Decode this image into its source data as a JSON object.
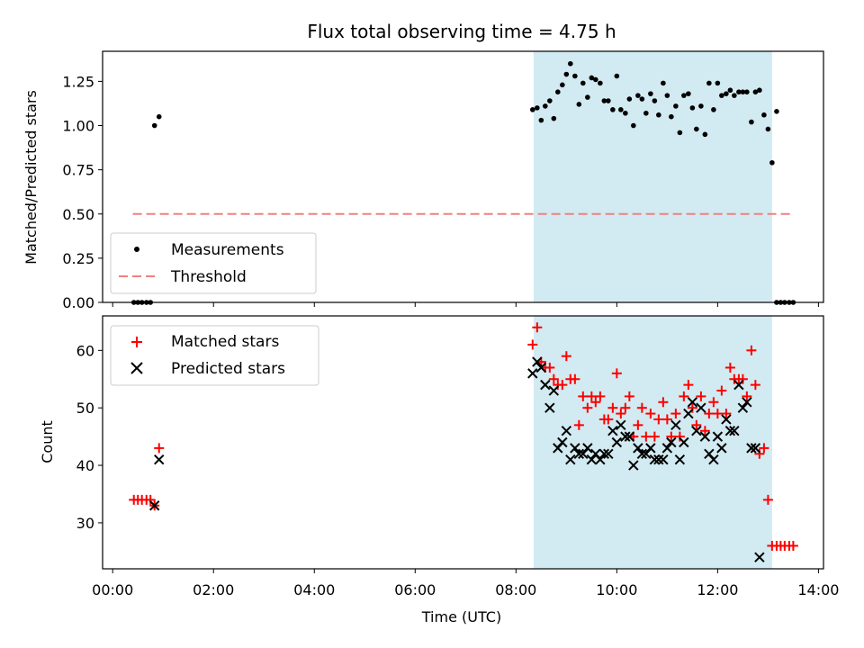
{
  "title": "Flux total observing time = 4.75 h",
  "colors": {
    "points": "#000000",
    "threshold": "#f08080",
    "matched": "#ff0000",
    "predicted": "#000000",
    "shade": "#add8e6"
  },
  "chart_data": [
    {
      "type": "scatter",
      "ylabel": "Matched/Predicted stars",
      "ylim": [
        0,
        1.42
      ],
      "yticks": [
        0.0,
        0.25,
        0.5,
        0.75,
        1.0,
        1.25
      ],
      "ytick_labels": [
        "0.00",
        "0.25",
        "0.50",
        "0.75",
        "1.00",
        "1.25"
      ],
      "xlim_hours": [
        -0.2,
        14.1
      ],
      "shaded_span_hours": [
        8.35,
        13.08
      ],
      "threshold": {
        "value": 0.5,
        "x_range_hours": [
          0.4,
          13.5
        ]
      },
      "legend": {
        "position": "lower-left",
        "entries": [
          "Measurements",
          "Threshold"
        ]
      },
      "series": [
        {
          "name": "Measurements",
          "points": [
            [
              0.42,
              0
            ],
            [
              0.5,
              0
            ],
            [
              0.58,
              0
            ],
            [
              0.67,
              0
            ],
            [
              0.75,
              0
            ],
            [
              0.83,
              1.0
            ],
            [
              0.92,
              1.05
            ],
            [
              8.33,
              1.09
            ],
            [
              8.42,
              1.1
            ],
            [
              8.5,
              1.03
            ],
            [
              8.58,
              1.11
            ],
            [
              8.67,
              1.14
            ],
            [
              8.75,
              1.04
            ],
            [
              8.83,
              1.19
            ],
            [
              8.92,
              1.23
            ],
            [
              9.0,
              1.29
            ],
            [
              9.08,
              1.35
            ],
            [
              9.17,
              1.28
            ],
            [
              9.25,
              1.12
            ],
            [
              9.33,
              1.24
            ],
            [
              9.42,
              1.16
            ],
            [
              9.5,
              1.27
            ],
            [
              9.58,
              1.26
            ],
            [
              9.67,
              1.24
            ],
            [
              9.75,
              1.14
            ],
            [
              9.83,
              1.14
            ],
            [
              9.92,
              1.09
            ],
            [
              10.0,
              1.28
            ],
            [
              10.08,
              1.09
            ],
            [
              10.17,
              1.07
            ],
            [
              10.25,
              1.15
            ],
            [
              10.33,
              1.0
            ],
            [
              10.42,
              1.17
            ],
            [
              10.5,
              1.15
            ],
            [
              10.58,
              1.07
            ],
            [
              10.67,
              1.18
            ],
            [
              10.75,
              1.14
            ],
            [
              10.83,
              1.06
            ],
            [
              10.92,
              1.24
            ],
            [
              11.0,
              1.17
            ],
            [
              11.08,
              1.05
            ],
            [
              11.17,
              1.11
            ],
            [
              11.25,
              0.96
            ],
            [
              11.33,
              1.17
            ],
            [
              11.42,
              1.18
            ],
            [
              11.5,
              1.1
            ],
            [
              11.58,
              0.98
            ],
            [
              11.67,
              1.11
            ],
            [
              11.75,
              0.95
            ],
            [
              11.83,
              1.24
            ],
            [
              11.92,
              1.09
            ],
            [
              12.0,
              1.24
            ],
            [
              12.08,
              1.17
            ],
            [
              12.17,
              1.18
            ],
            [
              12.25,
              1.2
            ],
            [
              12.33,
              1.17
            ],
            [
              12.42,
              1.19
            ],
            [
              12.5,
              1.19
            ],
            [
              12.58,
              1.19
            ],
            [
              12.67,
              1.02
            ],
            [
              12.75,
              1.19
            ],
            [
              12.83,
              1.2
            ],
            [
              12.92,
              1.06
            ],
            [
              13.0,
              0.98
            ],
            [
              13.08,
              0.79
            ],
            [
              13.17,
              1.08
            ],
            [
              13.17,
              0
            ],
            [
              13.25,
              0
            ],
            [
              13.33,
              0
            ],
            [
              13.42,
              0
            ],
            [
              13.5,
              0
            ]
          ]
        }
      ]
    },
    {
      "type": "scatter",
      "ylabel": "Count",
      "xlabel": "Time (UTC)",
      "ylim": [
        22,
        66
      ],
      "yticks": [
        30,
        40,
        50,
        60
      ],
      "ytick_labels": [
        "30",
        "40",
        "50",
        "60"
      ],
      "xlim_hours": [
        -0.2,
        14.1
      ],
      "xticks_hours": [
        0,
        2,
        4,
        6,
        8,
        10,
        12,
        14
      ],
      "xtick_labels": [
        "00:00",
        "02:00",
        "04:00",
        "06:00",
        "08:00",
        "10:00",
        "12:00",
        "14:00"
      ],
      "shaded_span_hours": [
        8.35,
        13.08
      ],
      "legend": {
        "position": "upper-left",
        "entries": [
          "Matched stars",
          "Predicted stars"
        ]
      },
      "series": [
        {
          "name": "Matched stars",
          "marker": "+",
          "points": [
            [
              0.42,
              34
            ],
            [
              0.5,
              34
            ],
            [
              0.58,
              34
            ],
            [
              0.67,
              34
            ],
            [
              0.75,
              34
            ],
            [
              0.83,
              33
            ],
            [
              0.92,
              43
            ],
            [
              8.33,
              61
            ],
            [
              8.42,
              64
            ],
            [
              8.5,
              58
            ],
            [
              8.58,
              57
            ],
            [
              8.67,
              57
            ],
            [
              8.75,
              55
            ],
            [
              8.83,
              54
            ],
            [
              8.92,
              54
            ],
            [
              9.0,
              59
            ],
            [
              9.08,
              55
            ],
            [
              9.17,
              55
            ],
            [
              9.25,
              47
            ],
            [
              9.33,
              52
            ],
            [
              9.42,
              50
            ],
            [
              9.5,
              52
            ],
            [
              9.58,
              51
            ],
            [
              9.67,
              52
            ],
            [
              9.75,
              48
            ],
            [
              9.83,
              48
            ],
            [
              9.92,
              50
            ],
            [
              10.0,
              56
            ],
            [
              10.08,
              49
            ],
            [
              10.17,
              50
            ],
            [
              10.25,
              52
            ],
            [
              10.33,
              45
            ],
            [
              10.42,
              47
            ],
            [
              10.5,
              50
            ],
            [
              10.58,
              45
            ],
            [
              10.67,
              49
            ],
            [
              10.75,
              45
            ],
            [
              10.83,
              48
            ],
            [
              10.92,
              51
            ],
            [
              11.0,
              48
            ],
            [
              11.08,
              45
            ],
            [
              11.17,
              49
            ],
            [
              11.25,
              45
            ],
            [
              11.33,
              52
            ],
            [
              11.42,
              54
            ],
            [
              11.5,
              50
            ],
            [
              11.58,
              47
            ],
            [
              11.67,
              52
            ],
            [
              11.75,
              46
            ],
            [
              11.83,
              49
            ],
            [
              11.92,
              51
            ],
            [
              12.0,
              49
            ],
            [
              12.08,
              53
            ],
            [
              12.17,
              49
            ],
            [
              12.25,
              57
            ],
            [
              12.33,
              55
            ],
            [
              12.42,
              55
            ],
            [
              12.5,
              55
            ],
            [
              12.58,
              52
            ],
            [
              12.67,
              60
            ],
            [
              12.75,
              54
            ],
            [
              12.83,
              42
            ],
            [
              12.92,
              43
            ],
            [
              13.0,
              34
            ],
            [
              13.08,
              26
            ],
            [
              13.17,
              26
            ],
            [
              13.25,
              26
            ],
            [
              13.33,
              26
            ],
            [
              13.42,
              26
            ],
            [
              13.5,
              26
            ]
          ]
        },
        {
          "name": "Predicted stars",
          "marker": "x",
          "points": [
            [
              0.83,
              33
            ],
            [
              0.92,
              41
            ],
            [
              8.33,
              56
            ],
            [
              8.42,
              58
            ],
            [
              8.5,
              57
            ],
            [
              8.58,
              54
            ],
            [
              8.67,
              50
            ],
            [
              8.75,
              53
            ],
            [
              8.83,
              43
            ],
            [
              8.92,
              44
            ],
            [
              9.0,
              46
            ],
            [
              9.08,
              41
            ],
            [
              9.17,
              43
            ],
            [
              9.25,
              42
            ],
            [
              9.33,
              42
            ],
            [
              9.42,
              43
            ],
            [
              9.5,
              41
            ],
            [
              9.58,
              42
            ],
            [
              9.67,
              41
            ],
            [
              9.75,
              42
            ],
            [
              9.83,
              42
            ],
            [
              9.92,
              46
            ],
            [
              10.0,
              44
            ],
            [
              10.08,
              47
            ],
            [
              10.17,
              45
            ],
            [
              10.25,
              45
            ],
            [
              10.33,
              40
            ],
            [
              10.42,
              43
            ],
            [
              10.5,
              42
            ],
            [
              10.58,
              42
            ],
            [
              10.67,
              43
            ],
            [
              10.75,
              41
            ],
            [
              10.83,
              41
            ],
            [
              10.92,
              41
            ],
            [
              11.0,
              43
            ],
            [
              11.08,
              44
            ],
            [
              11.17,
              47
            ],
            [
              11.25,
              41
            ],
            [
              11.33,
              44
            ],
            [
              11.42,
              49
            ],
            [
              11.5,
              51
            ],
            [
              11.58,
              46
            ],
            [
              11.67,
              50
            ],
            [
              11.75,
              45
            ],
            [
              11.83,
              42
            ],
            [
              11.92,
              41
            ],
            [
              12.0,
              45
            ],
            [
              12.08,
              43
            ],
            [
              12.17,
              48
            ],
            [
              12.25,
              46
            ],
            [
              12.33,
              46
            ],
            [
              12.42,
              54
            ],
            [
              12.5,
              50
            ],
            [
              12.58,
              51
            ],
            [
              12.67,
              43
            ],
            [
              12.75,
              43
            ],
            [
              12.83,
              24
            ]
          ]
        }
      ]
    }
  ]
}
